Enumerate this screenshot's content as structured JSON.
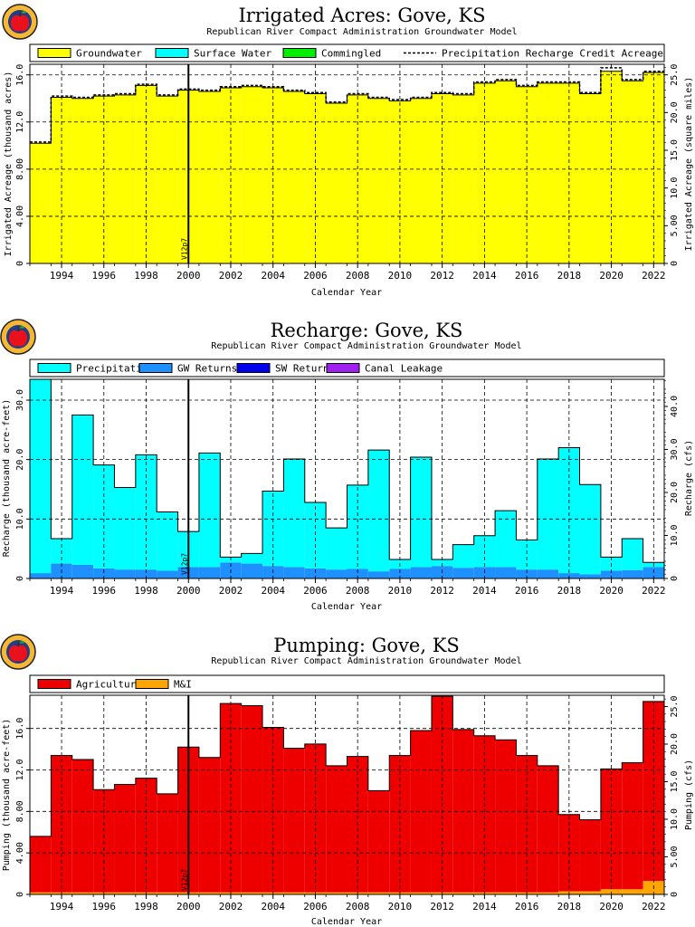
{
  "colors": {
    "groundwater": "#ffff00",
    "surface_water": "#00ffff",
    "commingled": "#00ee00",
    "precipitation": "#00ffff",
    "gw_returns": "#1e90ff",
    "sw_returns": "#0000ee",
    "canal_leakage": "#a020f0",
    "agricultural": "#ee0000",
    "mi": "#ffa500"
  },
  "logo_icon": "apple-logo-icon",
  "chart_data": [
    {
      "type": "bar",
      "title": "Irrigated Acres: Gove, KS",
      "subtitle": "Republican River Compact Administration Groundwater Model",
      "xlabel": "Calendar Year",
      "ylabel": "Irrigated Acreage (thousand acres)",
      "ylabel_right": "Irrigated Acreage (square miles)",
      "xlim": [
        1993,
        2023
      ],
      "ylim": [
        0,
        16.9
      ],
      "ylim_right": [
        0,
        26.4
      ],
      "y_ticks": [
        "0",
        "4.00",
        "8.00",
        "12.0",
        "16.0"
      ],
      "y_right_ticks": [
        "0",
        "5.00",
        "10.0",
        "15.0",
        "20.0",
        "25.0"
      ],
      "x_ticks": [
        "1994",
        "1996",
        "1998",
        "2000",
        "2002",
        "2004",
        "2006",
        "2008",
        "2010",
        "2012",
        "2014",
        "2016",
        "2018",
        "2020",
        "2022"
      ],
      "marker": {
        "x": 2000.5,
        "label": "V12p7"
      },
      "grid": true,
      "legend": [
        {
          "name": "Groundwater",
          "kind": "box",
          "color_key": "groundwater"
        },
        {
          "name": "Surface Water",
          "kind": "box",
          "color_key": "surface_water"
        },
        {
          "name": "Commingled",
          "kind": "box",
          "color_key": "commingled"
        },
        {
          "name": "Precipitation Recharge Credit Acreage",
          "kind": "dash"
        }
      ],
      "years": [
        1993,
        1994,
        1995,
        1996,
        1997,
        1998,
        1999,
        2000,
        2001,
        2002,
        2003,
        2004,
        2005,
        2006,
        2007,
        2008,
        2009,
        2010,
        2011,
        2012,
        2013,
        2014,
        2015,
        2016,
        2017,
        2018,
        2019,
        2020,
        2021,
        2022
      ],
      "series": [
        {
          "name": "Groundwater",
          "color_key": "groundwater",
          "values": [
            10.2,
            14.1,
            14.0,
            14.2,
            14.3,
            15.1,
            14.2,
            14.7,
            14.6,
            14.9,
            15.0,
            14.9,
            14.6,
            14.4,
            13.6,
            14.3,
            14.0,
            13.8,
            14.0,
            14.4,
            14.3,
            15.3,
            15.5,
            15.0,
            15.3,
            15.3,
            14.4,
            16.3,
            15.5,
            16.2
          ]
        },
        {
          "name": "Surface Water",
          "color_key": "surface_water",
          "values": [
            0,
            0,
            0,
            0,
            0,
            0,
            0,
            0,
            0,
            0,
            0,
            0,
            0,
            0,
            0,
            0,
            0,
            0,
            0,
            0,
            0,
            0,
            0,
            0,
            0,
            0,
            0,
            0,
            0,
            0
          ]
        },
        {
          "name": "Commingled",
          "color_key": "commingled",
          "values": [
            0,
            0,
            0,
            0,
            0,
            0,
            0,
            0,
            0,
            0,
            0,
            0,
            0,
            0,
            0,
            0,
            0,
            0,
            0,
            0,
            0,
            0,
            0,
            0,
            0,
            0,
            0,
            0,
            0,
            0
          ]
        }
      ],
      "line_series": {
        "name": "Precipitation Recharge Credit Acreage",
        "values": [
          10.3,
          14.2,
          14.1,
          14.3,
          14.4,
          15.2,
          14.3,
          14.8,
          14.7,
          15.0,
          15.1,
          15.0,
          14.7,
          14.5,
          13.7,
          14.4,
          14.1,
          13.9,
          14.1,
          14.5,
          14.4,
          15.4,
          15.6,
          15.1,
          15.4,
          15.4,
          14.5,
          16.6,
          15.6,
          16.3
        ]
      }
    },
    {
      "type": "bar",
      "title": "Recharge: Gove, KS",
      "subtitle": "Republican River Compact Administration Groundwater Model",
      "xlabel": "Calendar Year",
      "ylabel": "Recharge (thousand acre-feet)",
      "ylabel_right": "Recharge (cfs)",
      "xlim": [
        1993,
        2023
      ],
      "ylim": [
        0,
        33.5
      ],
      "ylim_right": [
        0,
        46.3
      ],
      "y_ticks": [
        "0",
        "10.0",
        "20.0",
        "30.0"
      ],
      "y_right_ticks": [
        "0",
        "10.0",
        "20.0",
        "30.0",
        "40.0"
      ],
      "x_ticks": [
        "1994",
        "1996",
        "1998",
        "2000",
        "2002",
        "2004",
        "2006",
        "2008",
        "2010",
        "2012",
        "2014",
        "2016",
        "2018",
        "2020",
        "2022"
      ],
      "marker": {
        "x": 2000.5,
        "label": "V12p7"
      },
      "grid": true,
      "legend": [
        {
          "name": "Precipitation",
          "kind": "box",
          "color_key": "precipitation"
        },
        {
          "name": "GW Returns",
          "kind": "box",
          "color_key": "gw_returns"
        },
        {
          "name": "SW Returns",
          "kind": "box",
          "color_key": "sw_returns"
        },
        {
          "name": "Canal Leakage",
          "kind": "box",
          "color_key": "canal_leakage"
        }
      ],
      "years": [
        1993,
        1994,
        1995,
        1996,
        1997,
        1998,
        1999,
        2000,
        2001,
        2002,
        2003,
        2004,
        2005,
        2006,
        2007,
        2008,
        2009,
        2010,
        2011,
        2012,
        2013,
        2014,
        2015,
        2016,
        2017,
        2018,
        2019,
        2020,
        2021,
        2022
      ],
      "series": [
        {
          "name": "GW Returns",
          "color_key": "gw_returns",
          "values": [
            0.9,
            2.5,
            2.3,
            1.7,
            1.5,
            1.5,
            1.3,
            1.9,
            1.9,
            2.7,
            2.5,
            2.1,
            1.9,
            1.7,
            1.5,
            1.6,
            1.2,
            1.6,
            1.9,
            2.1,
            1.8,
            1.9,
            1.9,
            1.5,
            1.5,
            0.9,
            0.7,
            1.3,
            1.4,
            1.9
          ]
        },
        {
          "name": "SW Returns",
          "color_key": "sw_returns",
          "values": [
            0,
            0,
            0,
            0,
            0,
            0,
            0,
            0,
            0,
            0,
            0,
            0,
            0,
            0,
            0,
            0,
            0,
            0,
            0,
            0,
            0,
            0,
            0,
            0,
            0,
            0,
            0,
            0,
            0,
            0
          ]
        },
        {
          "name": "Canal Leakage",
          "color_key": "canal_leakage",
          "values": [
            0,
            0,
            0,
            0,
            0,
            0,
            0,
            0,
            0,
            0,
            0,
            0,
            0,
            0,
            0,
            0,
            0,
            0,
            0,
            0,
            0,
            0,
            0,
            0,
            0,
            0,
            0,
            0,
            0,
            0
          ]
        },
        {
          "name": "Precipitation",
          "color_key": "precipitation",
          "values": [
            32.6,
            4.2,
            25.2,
            17.4,
            13.8,
            19.3,
            9.9,
            6.0,
            19.2,
            0.9,
            1.7,
            12.6,
            18.2,
            11.1,
            7.0,
            14.1,
            20.4,
            1.6,
            18.5,
            1.1,
            3.9,
            5.3,
            9.5,
            5.0,
            18.6,
            21.1,
            15.1,
            2.3,
            5.3,
            0.8
          ]
        }
      ]
    },
    {
      "type": "bar",
      "title": "Pumping: Gove, KS",
      "subtitle": "Republican River Compact Administration Groundwater Model",
      "xlabel": "Calendar Year",
      "ylabel": "Pumping (thousand acre-feet)",
      "ylabel_right": "Pumping (cfs)",
      "xlim": [
        1993,
        2023
      ],
      "ylim": [
        0,
        19.2
      ],
      "ylim_right": [
        0,
        26.5
      ],
      "y_ticks": [
        "0",
        "4.00",
        "8.00",
        "12.0",
        "16.0"
      ],
      "y_right_ticks": [
        "0",
        "5.00",
        "10.0",
        "15.0",
        "20.0",
        "25.0"
      ],
      "x_ticks": [
        "1994",
        "1996",
        "1998",
        "2000",
        "2002",
        "2004",
        "2006",
        "2008",
        "2010",
        "2012",
        "2014",
        "2016",
        "2018",
        "2020",
        "2022"
      ],
      "marker": {
        "x": 2000.5,
        "label": "V12p7"
      },
      "grid": true,
      "legend": [
        {
          "name": "Agricultural",
          "kind": "box",
          "color_key": "agricultural"
        },
        {
          "name": "M&I",
          "kind": "box",
          "color_key": "mi"
        }
      ],
      "years": [
        1993,
        1994,
        1995,
        1996,
        1997,
        1998,
        1999,
        2000,
        2001,
        2002,
        2003,
        2004,
        2005,
        2006,
        2007,
        2008,
        2009,
        2010,
        2011,
        2012,
        2013,
        2014,
        2015,
        2016,
        2017,
        2018,
        2019,
        2020,
        2021,
        2022
      ],
      "series": [
        {
          "name": "M&I",
          "color_key": "mi",
          "values": [
            0.2,
            0.2,
            0.2,
            0.2,
            0.2,
            0.2,
            0.2,
            0.2,
            0.2,
            0.2,
            0.2,
            0.2,
            0.2,
            0.2,
            0.2,
            0.2,
            0.2,
            0.2,
            0.2,
            0.2,
            0.2,
            0.2,
            0.2,
            0.2,
            0.2,
            0.3,
            0.3,
            0.5,
            0.5,
            1.3
          ]
        },
        {
          "name": "Agricultural",
          "color_key": "agricultural",
          "values": [
            5.4,
            13.2,
            12.8,
            9.9,
            10.4,
            11.0,
            9.5,
            14.0,
            13.0,
            18.2,
            18.0,
            15.9,
            13.9,
            14.3,
            12.2,
            13.1,
            9.8,
            13.2,
            15.6,
            18.9,
            15.7,
            15.1,
            14.7,
            13.2,
            12.2,
            7.4,
            6.9,
            11.6,
            12.2,
            17.3
          ]
        }
      ]
    }
  ]
}
